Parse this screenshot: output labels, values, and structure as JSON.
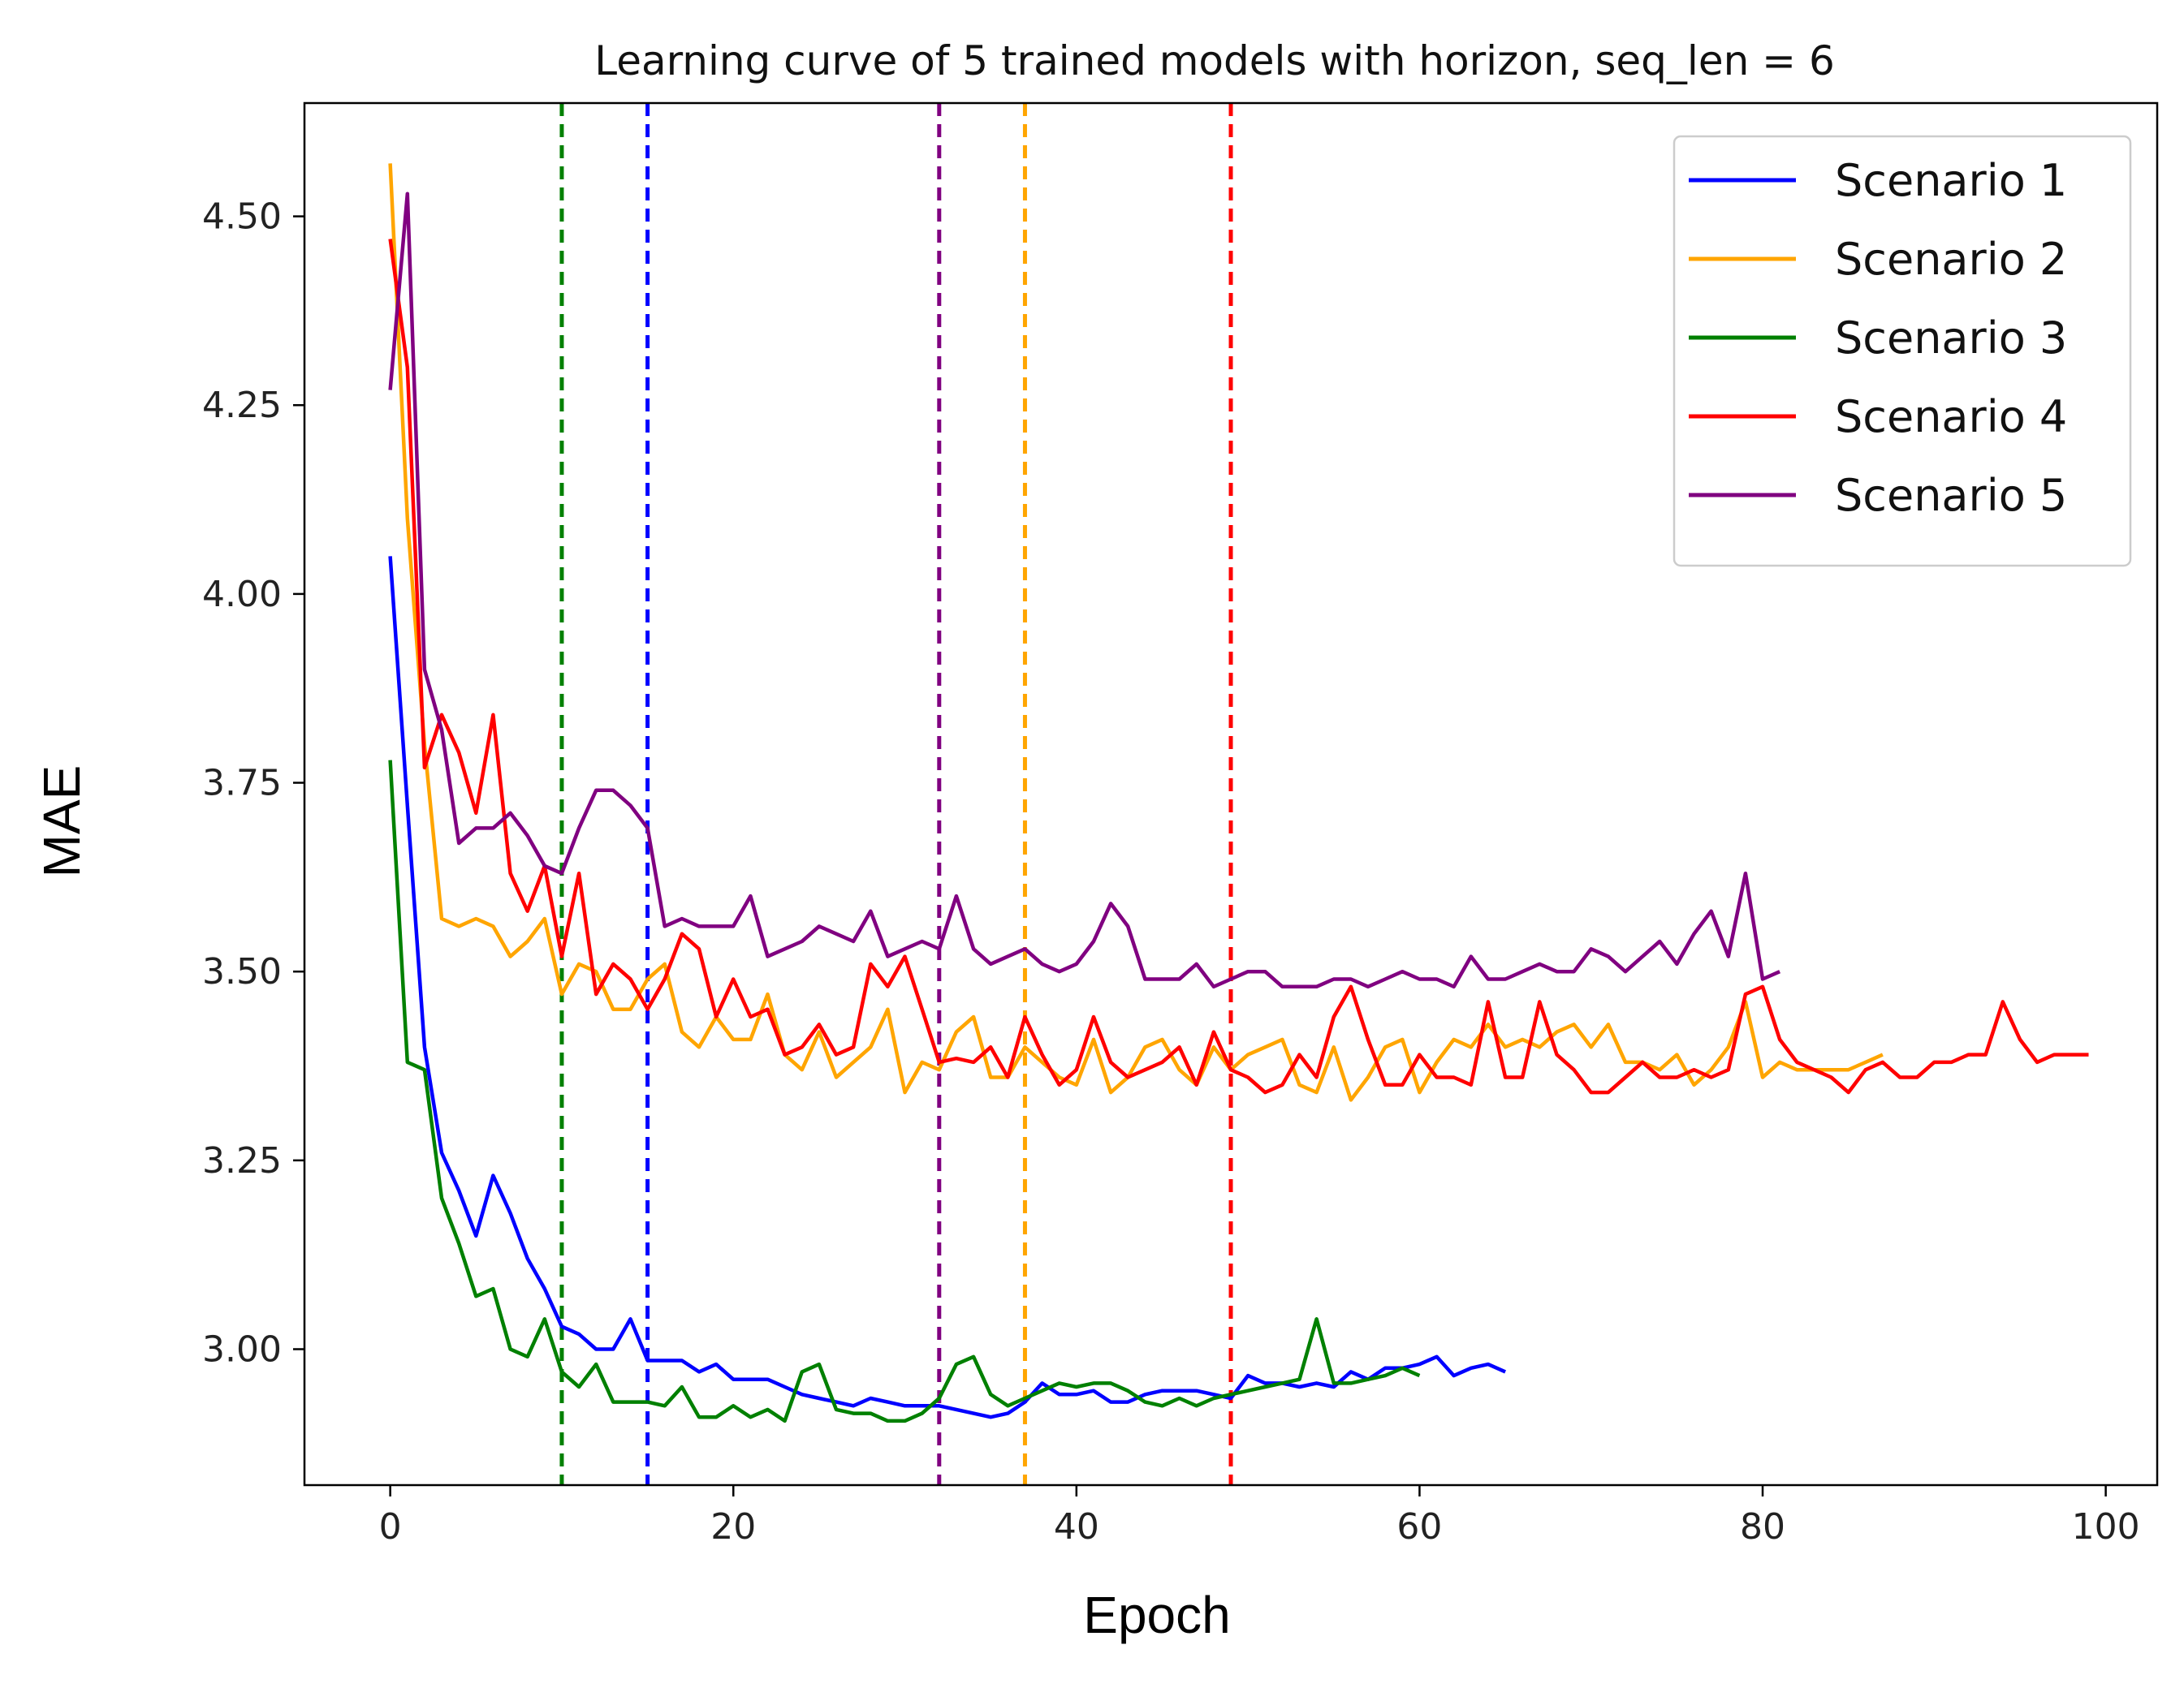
{
  "chart_data": {
    "type": "line",
    "title": "Learning curve of 5 trained models with horizon, seq_len = 6",
    "xlabel": "Epoch",
    "ylabel": "MAE",
    "xlim": [
      -5,
      103
    ],
    "ylim": [
      2.82,
      4.65
    ],
    "xticks": [
      0,
      20,
      40,
      60,
      80,
      100
    ],
    "yticks": [
      3.0,
      3.25,
      3.5,
      3.75,
      4.0,
      4.25,
      4.5
    ],
    "xtick_labels": [
      "0",
      "20",
      "40",
      "60",
      "80",
      "100"
    ],
    "ytick_labels": [
      "3.00",
      "3.25",
      "3.50",
      "3.75",
      "4.00",
      "4.25",
      "4.50"
    ],
    "grid": false,
    "legend_position": "top-right",
    "series": [
      {
        "name": "Scenario 1",
        "color": "#0000ff",
        "values": [
          4.05,
          3.72,
          3.4,
          3.26,
          3.21,
          3.15,
          3.23,
          3.18,
          3.12,
          3.08,
          3.03,
          3.02,
          3.0,
          3.0,
          3.04,
          2.985,
          2.985,
          2.985,
          2.97,
          2.98,
          2.96,
          2.96,
          2.96,
          2.95,
          2.94,
          2.935,
          2.93,
          2.925,
          2.935,
          2.93,
          2.925,
          2.925,
          2.925,
          2.92,
          2.915,
          2.91,
          2.915,
          2.93,
          2.955,
          2.94,
          2.94,
          2.945,
          2.93,
          2.93,
          2.94,
          2.945,
          2.945,
          2.945,
          2.94,
          2.935,
          2.965,
          2.955,
          2.955,
          2.95,
          2.955,
          2.95,
          2.97,
          2.96,
          2.975,
          2.975,
          2.98,
          2.99,
          2.965,
          2.975,
          2.98,
          2.97
        ]
      },
      {
        "name": "Scenario 2",
        "color": "#ffa500",
        "values": [
          4.57,
          4.1,
          3.8,
          3.57,
          3.56,
          3.57,
          3.56,
          3.52,
          3.54,
          3.57,
          3.47,
          3.51,
          3.5,
          3.45,
          3.45,
          3.49,
          3.51,
          3.42,
          3.4,
          3.44,
          3.41,
          3.41,
          3.47,
          3.39,
          3.37,
          3.42,
          3.36,
          3.38,
          3.4,
          3.45,
          3.34,
          3.38,
          3.37,
          3.42,
          3.44,
          3.36,
          3.36,
          3.4,
          3.38,
          3.36,
          3.35,
          3.41,
          3.34,
          3.36,
          3.4,
          3.41,
          3.37,
          3.35,
          3.4,
          3.37,
          3.39,
          3.4,
          3.41,
          3.35,
          3.34,
          3.4,
          3.33,
          3.36,
          3.4,
          3.41,
          3.34,
          3.38,
          3.41,
          3.4,
          3.43,
          3.4,
          3.41,
          3.4,
          3.42,
          3.43,
          3.4,
          3.43,
          3.38,
          3.38,
          3.37,
          3.39,
          3.35,
          3.37,
          3.4,
          3.46,
          3.36,
          3.38,
          3.37,
          3.37,
          3.37,
          3.37,
          3.38,
          3.39
        ]
      },
      {
        "name": "Scenario 3",
        "color": "#008000",
        "values": [
          3.78,
          3.38,
          3.37,
          3.2,
          3.14,
          3.07,
          3.08,
          3.0,
          2.99,
          3.04,
          2.97,
          2.95,
          2.98,
          2.93,
          2.93,
          2.93,
          2.925,
          2.95,
          2.91,
          2.91,
          2.925,
          2.91,
          2.92,
          2.905,
          2.97,
          2.98,
          2.92,
          2.915,
          2.915,
          2.905,
          2.905,
          2.915,
          2.935,
          2.98,
          2.99,
          2.94,
          2.925,
          2.935,
          2.945,
          2.955,
          2.95,
          2.955,
          2.955,
          2.945,
          2.93,
          2.925,
          2.935,
          2.925,
          2.935,
          2.94,
          2.945,
          2.95,
          2.955,
          2.96,
          3.04,
          2.955,
          2.955,
          2.96,
          2.965,
          2.975,
          2.965
        ]
      },
      {
        "name": "Scenario 4",
        "color": "#ff0000",
        "values": [
          4.47,
          4.3,
          3.77,
          3.84,
          3.79,
          3.71,
          3.84,
          3.63,
          3.58,
          3.64,
          3.52,
          3.63,
          3.47,
          3.51,
          3.49,
          3.45,
          3.49,
          3.55,
          3.53,
          3.44,
          3.49,
          3.44,
          3.45,
          3.39,
          3.4,
          3.43,
          3.39,
          3.4,
          3.51,
          3.48,
          3.52,
          3.45,
          3.38,
          3.385,
          3.38,
          3.4,
          3.36,
          3.44,
          3.39,
          3.35,
          3.37,
          3.44,
          3.38,
          3.36,
          3.37,
          3.38,
          3.4,
          3.35,
          3.42,
          3.37,
          3.36,
          3.34,
          3.35,
          3.39,
          3.36,
          3.44,
          3.48,
          3.41,
          3.35,
          3.35,
          3.39,
          3.36,
          3.36,
          3.35,
          3.46,
          3.36,
          3.36,
          3.46,
          3.39,
          3.37,
          3.34,
          3.34,
          3.36,
          3.38,
          3.36,
          3.36,
          3.37,
          3.36,
          3.37,
          3.47,
          3.48,
          3.41,
          3.38,
          3.37,
          3.36,
          3.34,
          3.37,
          3.38,
          3.36,
          3.36,
          3.38,
          3.38,
          3.39,
          3.39,
          3.46,
          3.41,
          3.38,
          3.39,
          3.39,
          3.39
        ]
      },
      {
        "name": "Scenario 5",
        "color": "#800080",
        "values": [
          4.27,
          4.53,
          3.9,
          3.82,
          3.67,
          3.69,
          3.69,
          3.71,
          3.68,
          3.64,
          3.63,
          3.69,
          3.74,
          3.74,
          3.72,
          3.69,
          3.56,
          3.57,
          3.56,
          3.56,
          3.56,
          3.6,
          3.52,
          3.53,
          3.54,
          3.56,
          3.55,
          3.54,
          3.58,
          3.52,
          3.53,
          3.54,
          3.53,
          3.6,
          3.53,
          3.51,
          3.52,
          3.53,
          3.51,
          3.5,
          3.51,
          3.54,
          3.59,
          3.56,
          3.49,
          3.49,
          3.49,
          3.51,
          3.48,
          3.49,
          3.5,
          3.5,
          3.48,
          3.48,
          3.48,
          3.49,
          3.49,
          3.48,
          3.49,
          3.5,
          3.49,
          3.49,
          3.48,
          3.52,
          3.49,
          3.49,
          3.5,
          3.51,
          3.5,
          3.5,
          3.53,
          3.52,
          3.5,
          3.52,
          3.54,
          3.51,
          3.55,
          3.58,
          3.52,
          3.63,
          3.49,
          3.5
        ]
      }
    ],
    "vertical_lines": [
      {
        "x": 10,
        "color": "#008000",
        "style": "dashed"
      },
      {
        "x": 15,
        "color": "#0000ff",
        "style": "dashed"
      },
      {
        "x": 32,
        "color": "#800080",
        "style": "dashed"
      },
      {
        "x": 37,
        "color": "#ffa500",
        "style": "dashed"
      },
      {
        "x": 49,
        "color": "#ff0000",
        "style": "dashed"
      }
    ]
  }
}
